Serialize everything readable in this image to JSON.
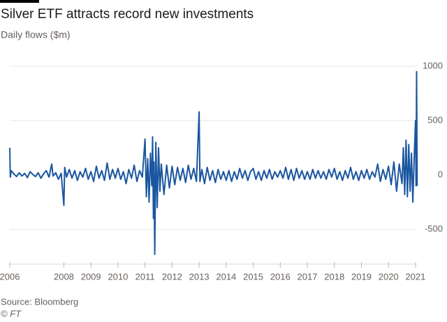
{
  "chart_data": {
    "type": "line",
    "title": "Silver ETF attracts record new investments",
    "subtitle": "Daily flows ($m)",
    "source": "Source: Bloomberg",
    "credit": "© FT",
    "x": [
      2006.0,
      2006.02,
      2006.05,
      2006.15,
      2006.25,
      2006.35,
      2006.45,
      2006.55,
      2006.65,
      2006.75,
      2006.85,
      2006.95,
      2007.05,
      2007.15,
      2007.25,
      2007.35,
      2007.45,
      2007.55,
      2007.6,
      2007.7,
      2007.8,
      2007.9,
      2008.0,
      2008.03,
      2008.1,
      2008.2,
      2008.3,
      2008.4,
      2008.5,
      2008.6,
      2008.7,
      2008.8,
      2008.9,
      2009.0,
      2009.1,
      2009.2,
      2009.3,
      2009.4,
      2009.5,
      2009.6,
      2009.7,
      2009.8,
      2009.9,
      2010.0,
      2010.1,
      2010.2,
      2010.3,
      2010.4,
      2010.5,
      2010.6,
      2010.7,
      2010.8,
      2010.9,
      2011.0,
      2011.05,
      2011.1,
      2011.15,
      2011.2,
      2011.25,
      2011.28,
      2011.31,
      2011.33,
      2011.36,
      2011.4,
      2011.45,
      2011.5,
      2011.55,
      2011.6,
      2011.7,
      2011.8,
      2011.9,
      2012.0,
      2012.1,
      2012.2,
      2012.3,
      2012.4,
      2012.5,
      2012.6,
      2012.7,
      2012.8,
      2012.9,
      2013.0,
      2013.03,
      2013.1,
      2013.2,
      2013.3,
      2013.4,
      2013.5,
      2013.6,
      2013.7,
      2013.8,
      2013.9,
      2014.0,
      2014.1,
      2014.2,
      2014.3,
      2014.4,
      2014.5,
      2014.6,
      2014.7,
      2014.8,
      2014.9,
      2015.0,
      2015.1,
      2015.2,
      2015.3,
      2015.4,
      2015.5,
      2015.6,
      2015.7,
      2015.8,
      2015.9,
      2016.0,
      2016.1,
      2016.2,
      2016.3,
      2016.4,
      2016.5,
      2016.6,
      2016.7,
      2016.8,
      2016.9,
      2017.0,
      2017.1,
      2017.2,
      2017.3,
      2017.4,
      2017.5,
      2017.6,
      2017.7,
      2017.8,
      2017.9,
      2018.0,
      2018.1,
      2018.2,
      2018.3,
      2018.4,
      2018.5,
      2018.6,
      2018.7,
      2018.8,
      2018.9,
      2019.0,
      2019.1,
      2019.2,
      2019.3,
      2019.4,
      2019.5,
      2019.6,
      2019.7,
      2019.8,
      2019.9,
      2020.0,
      2020.1,
      2020.2,
      2020.3,
      2020.4,
      2020.5,
      2020.55,
      2020.6,
      2020.65,
      2020.7,
      2020.75,
      2020.8,
      2020.85,
      2020.9,
      2020.95,
      2021.0,
      2021.02,
      2021.04,
      2021.06
    ],
    "series": [
      {
        "name": "Daily flows",
        "color": "#1a56a0",
        "values": [
          250,
          -20,
          40,
          10,
          -15,
          20,
          -10,
          15,
          -25,
          30,
          5,
          -15,
          20,
          -30,
          10,
          40,
          -20,
          100,
          -10,
          20,
          -40,
          15,
          -280,
          70,
          -20,
          50,
          -30,
          40,
          -50,
          30,
          -20,
          60,
          -40,
          30,
          -60,
          80,
          -30,
          40,
          -50,
          110,
          -40,
          50,
          -30,
          60,
          -40,
          30,
          -80,
          50,
          -30,
          90,
          -60,
          40,
          -20,
          330,
          -200,
          150,
          -250,
          200,
          -100,
          350,
          -400,
          120,
          -730,
          300,
          -300,
          250,
          -150,
          100,
          -180,
          90,
          -120,
          80,
          -90,
          70,
          -50,
          60,
          -70,
          90,
          -40,
          60,
          -60,
          580,
          -60,
          50,
          -80,
          70,
          -50,
          40,
          -70,
          50,
          -40,
          30,
          -50,
          40,
          -60,
          30,
          -40,
          60,
          -30,
          40,
          -50,
          30,
          60,
          -40,
          30,
          -50,
          40,
          -30,
          50,
          -40,
          30,
          -20,
          40,
          -30,
          70,
          -40,
          50,
          -50,
          60,
          -30,
          40,
          -40,
          30,
          -40,
          50,
          -30,
          40,
          -30,
          30,
          -40,
          50,
          -20,
          60,
          -40,
          30,
          -50,
          40,
          -30,
          70,
          -40,
          30,
          -50,
          40,
          -30,
          50,
          -40,
          30,
          -20,
          100,
          -60,
          50,
          -40,
          80,
          -90,
          120,
          -150,
          100,
          -80,
          250,
          -180,
          320,
          -200,
          280,
          -150,
          200,
          -250,
          150,
          500,
          -100,
          950,
          -100
        ]
      }
    ],
    "xlim": [
      2006,
      2021.1
    ],
    "xticks": [
      2006,
      2008,
      2009,
      2010,
      2011,
      2012,
      2013,
      2014,
      2015,
      2016,
      2017,
      2018,
      2019,
      2020,
      2021
    ],
    "ylim": [
      -800,
      1050
    ],
    "yticks": [
      1000,
      500,
      0,
      -500
    ],
    "grid": true
  }
}
